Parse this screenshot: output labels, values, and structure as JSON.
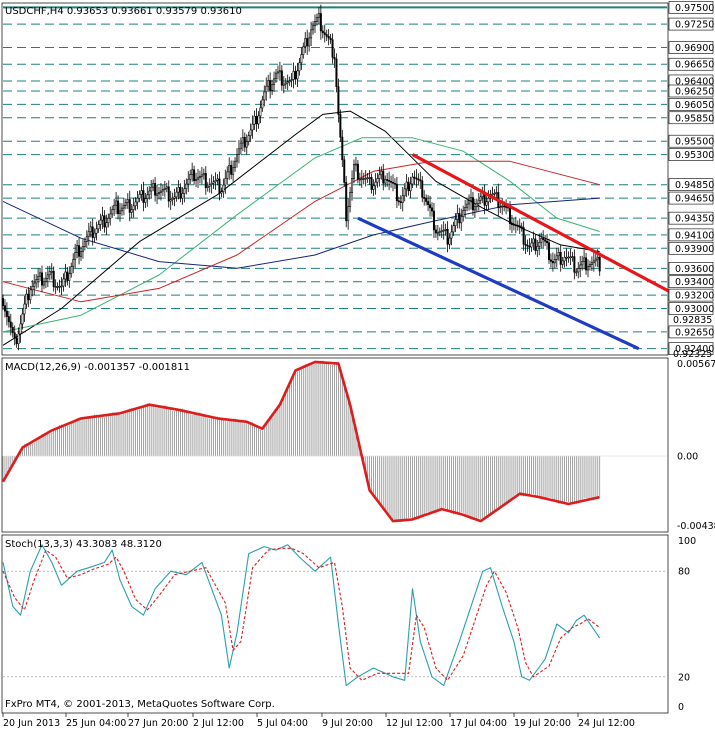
{
  "window": {
    "header": "USDCHF,H4  0.93653 0.93661 0.93579 0.93610",
    "footer": "FxPro MT4, © 2001-2013, MetaQuotes Software Corp."
  },
  "colors": {
    "candles": "#000000",
    "price_levels": "#1f7f7f",
    "ma_fast": "#000000",
    "ma_green": "#3cb371",
    "ma_red": "#cc2222",
    "ma_blue": "#1a237e",
    "trend_red": "#e8161a",
    "trend_blue": "#1f3bc4",
    "macd_signal": "#dd1c1c",
    "macd_hist": "#8e8e8e",
    "stoch_main": "#2a9fb0",
    "stoch_signal": "#dd1c1c"
  },
  "chart_data": [
    {
      "type": "candlestick",
      "title": "USDCHF,H4",
      "symbol": "USDCHF",
      "timeframe": "H4",
      "ohlc_latest": {
        "open": 0.93653,
        "high": 0.93661,
        "low": 0.93579,
        "close": 0.9361
      },
      "ylim": [
        0.9232,
        0.9755
      ],
      "price_levels": [
        "0.97500",
        "0.97250",
        "0.96900",
        "0.96650",
        "0.96400",
        "0.96250",
        "0.96050",
        "0.95850",
        "0.95500",
        "0.95300",
        "0.94850",
        "0.94650",
        "0.94350",
        "0.94100",
        "0.93900",
        "0.93600",
        "0.93400",
        "0.93200",
        "0.93000",
        "0.92650",
        "0.92400"
      ],
      "extra_axis_labels": [
        "0.92835",
        "0.92325"
      ],
      "x_tick_labels": [
        "20 Jun 2013",
        "25 Jun 04:00",
        "27 Jun 20:00",
        "2 Jul 12:00",
        "5 Jul 04:00",
        "9 Jul 20:00",
        "12 Jul 12:00",
        "17 Jul 04:00",
        "19 Jul 20:00",
        "24 Jul 12:00"
      ],
      "price_path": [
        [
          0,
          0.9315
        ],
        [
          6,
          0.9245
        ],
        [
          14,
          0.9335
        ],
        [
          24,
          0.935
        ],
        [
          30,
          0.933
        ],
        [
          38,
          0.9385
        ],
        [
          46,
          0.9415
        ],
        [
          58,
          0.945
        ],
        [
          66,
          0.9455
        ],
        [
          78,
          0.948
        ],
        [
          88,
          0.9465
        ],
        [
          98,
          0.95
        ],
        [
          112,
          0.948
        ],
        [
          120,
          0.953
        ],
        [
          128,
          0.957
        ],
        [
          134,
          0.962
        ],
        [
          140,
          0.965
        ],
        [
          148,
          0.9635
        ],
        [
          158,
          0.972
        ],
        [
          162,
          0.973
        ],
        [
          170,
          0.968
        ],
        [
          172,
          0.959
        ],
        [
          176,
          0.944
        ],
        [
          180,
          0.951
        ],
        [
          188,
          0.9485
        ],
        [
          196,
          0.95
        ],
        [
          204,
          0.946
        ],
        [
          210,
          0.95
        ],
        [
          216,
          0.947
        ],
        [
          222,
          0.942
        ],
        [
          228,
          0.9405
        ],
        [
          236,
          0.945
        ],
        [
          244,
          0.946
        ],
        [
          250,
          0.947
        ],
        [
          256,
          0.9455
        ],
        [
          264,
          0.942
        ],
        [
          270,
          0.939
        ],
        [
          276,
          0.9405
        ],
        [
          282,
          0.937
        ],
        [
          288,
          0.938
        ],
        [
          294,
          0.936
        ],
        [
          300,
          0.937
        ],
        [
          306,
          0.9365
        ]
      ],
      "moving_averages": [
        {
          "color_key": "ma_fast",
          "points": [
            [
              0,
              0.9245
            ],
            [
              30,
              0.93
            ],
            [
              70,
              0.94
            ],
            [
              110,
              0.947
            ],
            [
              150,
              0.956
            ],
            [
              164,
              0.959
            ],
            [
              178,
              0.9595
            ],
            [
              196,
              0.9565
            ],
            [
              222,
              0.949
            ],
            [
              246,
              0.945
            ],
            [
              266,
              0.942
            ],
            [
              286,
              0.9395
            ],
            [
              306,
              0.9385
            ]
          ]
        },
        {
          "color_key": "ma_green",
          "points": [
            [
              0,
              0.9265
            ],
            [
              40,
              0.929
            ],
            [
              80,
              0.935
            ],
            [
              120,
              0.944
            ],
            [
              160,
              0.9525
            ],
            [
              184,
              0.9555
            ],
            [
              210,
              0.9555
            ],
            [
              236,
              0.9535
            ],
            [
              260,
              0.949
            ],
            [
              284,
              0.9435
            ],
            [
              306,
              0.9415
            ]
          ]
        },
        {
          "color_key": "ma_red",
          "points": [
            [
              0,
              0.934
            ],
            [
              40,
              0.931
            ],
            [
              80,
              0.933
            ],
            [
              120,
              0.938
            ],
            [
              160,
              0.946
            ],
            [
              190,
              0.9505
            ],
            [
              220,
              0.952
            ],
            [
              260,
              0.952
            ],
            [
              306,
              0.9485
            ]
          ]
        },
        {
          "color_key": "ma_blue",
          "points": [
            [
              0,
              0.946
            ],
            [
              40,
              0.9405
            ],
            [
              80,
              0.937
            ],
            [
              120,
              0.936
            ],
            [
              160,
              0.938
            ],
            [
              190,
              0.941
            ],
            [
              220,
              0.943
            ],
            [
              260,
              0.9455
            ],
            [
              306,
              0.9465
            ]
          ]
        }
      ],
      "trendlines": [
        {
          "color_key": "trend_red",
          "from": [
            210,
            0.953
          ],
          "to": [
            342,
            0.9325
          ]
        },
        {
          "color_key": "trend_blue",
          "from": [
            182,
            0.9435
          ],
          "to": [
            326,
            0.924
          ]
        }
      ]
    },
    {
      "type": "line",
      "title": "MACD(12,26,9) -0.001357 -0.001811",
      "indicator": "MACD",
      "params": "12,26,9",
      "values": {
        "main": -0.001357,
        "signal": -0.001811
      },
      "ylim": [
        -0.00438,
        0.00567
      ],
      "tick_labels": [
        "0.00567",
        "0.00",
        "-0.00438"
      ],
      "signal_path": [
        [
          0,
          -0.0015
        ],
        [
          10,
          0.0005
        ],
        [
          25,
          0.0015
        ],
        [
          40,
          0.0022
        ],
        [
          60,
          0.0025
        ],
        [
          75,
          0.003
        ],
        [
          90,
          0.0027
        ],
        [
          110,
          0.0022
        ],
        [
          125,
          0.002
        ],
        [
          133,
          0.0016
        ],
        [
          142,
          0.003
        ],
        [
          150,
          0.005
        ],
        [
          160,
          0.0055
        ],
        [
          172,
          0.0054
        ],
        [
          178,
          0.003
        ],
        [
          188,
          -0.002
        ],
        [
          200,
          -0.0038
        ],
        [
          210,
          -0.0037
        ],
        [
          225,
          -0.0031
        ],
        [
          235,
          -0.0034
        ],
        [
          245,
          -0.0038
        ],
        [
          255,
          -0.003
        ],
        [
          265,
          -0.0022
        ],
        [
          275,
          -0.0024
        ],
        [
          290,
          -0.0028
        ],
        [
          306,
          -0.0024
        ]
      ]
    },
    {
      "type": "line",
      "title": "Stoch(13,3,3) 43.3083 48.3120",
      "indicator": "Stochastic",
      "params": "13,3,3",
      "values": {
        "main": 43.3083,
        "signal": 48.312
      },
      "ylim": [
        0,
        100
      ],
      "tick_labels": [
        "100",
        "80",
        "20",
        "0"
      ],
      "main_path": [
        [
          0,
          85
        ],
        [
          5,
          60
        ],
        [
          9,
          55
        ],
        [
          14,
          80
        ],
        [
          20,
          95
        ],
        [
          25,
          85
        ],
        [
          30,
          72
        ],
        [
          38,
          80
        ],
        [
          44,
          82
        ],
        [
          52,
          85
        ],
        [
          56,
          92
        ],
        [
          60,
          75
        ],
        [
          66,
          60
        ],
        [
          72,
          55
        ],
        [
          78,
          70
        ],
        [
          86,
          80
        ],
        [
          94,
          78
        ],
        [
          102,
          85
        ],
        [
          112,
          55
        ],
        [
          116,
          25
        ],
        [
          120,
          45
        ],
        [
          126,
          90
        ],
        [
          134,
          94
        ],
        [
          140,
          92
        ],
        [
          146,
          95
        ],
        [
          152,
          88
        ],
        [
          160,
          80
        ],
        [
          168,
          88
        ],
        [
          172,
          50
        ],
        [
          176,
          15
        ],
        [
          182,
          20
        ],
        [
          190,
          25
        ],
        [
          200,
          20
        ],
        [
          206,
          18
        ],
        [
          210,
          70
        ],
        [
          214,
          40
        ],
        [
          220,
          20
        ],
        [
          226,
          15
        ],
        [
          234,
          40
        ],
        [
          240,
          60
        ],
        [
          246,
          80
        ],
        [
          250,
          82
        ],
        [
          256,
          60
        ],
        [
          262,
          40
        ],
        [
          266,
          20
        ],
        [
          270,
          18
        ],
        [
          278,
          30
        ],
        [
          284,
          50
        ],
        [
          290,
          45
        ],
        [
          294,
          52
        ],
        [
          298,
          55
        ],
        [
          306,
          42
        ]
      ],
      "signal_path": [
        [
          0,
          80
        ],
        [
          6,
          65
        ],
        [
          11,
          58
        ],
        [
          16,
          75
        ],
        [
          22,
          92
        ],
        [
          27,
          88
        ],
        [
          33,
          76
        ],
        [
          40,
          78
        ],
        [
          46,
          81
        ],
        [
          54,
          84
        ],
        [
          58,
          88
        ],
        [
          62,
          80
        ],
        [
          68,
          64
        ],
        [
          74,
          58
        ],
        [
          80,
          66
        ],
        [
          88,
          78
        ],
        [
          96,
          80
        ],
        [
          104,
          82
        ],
        [
          114,
          62
        ],
        [
          118,
          35
        ],
        [
          122,
          40
        ],
        [
          128,
          82
        ],
        [
          136,
          92
        ],
        [
          142,
          93
        ],
        [
          148,
          93
        ],
        [
          154,
          90
        ],
        [
          162,
          82
        ],
        [
          170,
          85
        ],
        [
          174,
          60
        ],
        [
          178,
          25
        ],
        [
          184,
          18
        ],
        [
          192,
          22
        ],
        [
          202,
          22
        ],
        [
          208,
          22
        ],
        [
          212,
          55
        ],
        [
          216,
          48
        ],
        [
          222,
          25
        ],
        [
          228,
          18
        ],
        [
          236,
          32
        ],
        [
          242,
          52
        ],
        [
          248,
          72
        ],
        [
          252,
          80
        ],
        [
          258,
          68
        ],
        [
          264,
          48
        ],
        [
          268,
          28
        ],
        [
          272,
          20
        ],
        [
          280,
          26
        ],
        [
          286,
          42
        ],
        [
          292,
          48
        ],
        [
          296,
          50
        ],
        [
          300,
          53
        ],
        [
          306,
          48
        ]
      ]
    }
  ]
}
